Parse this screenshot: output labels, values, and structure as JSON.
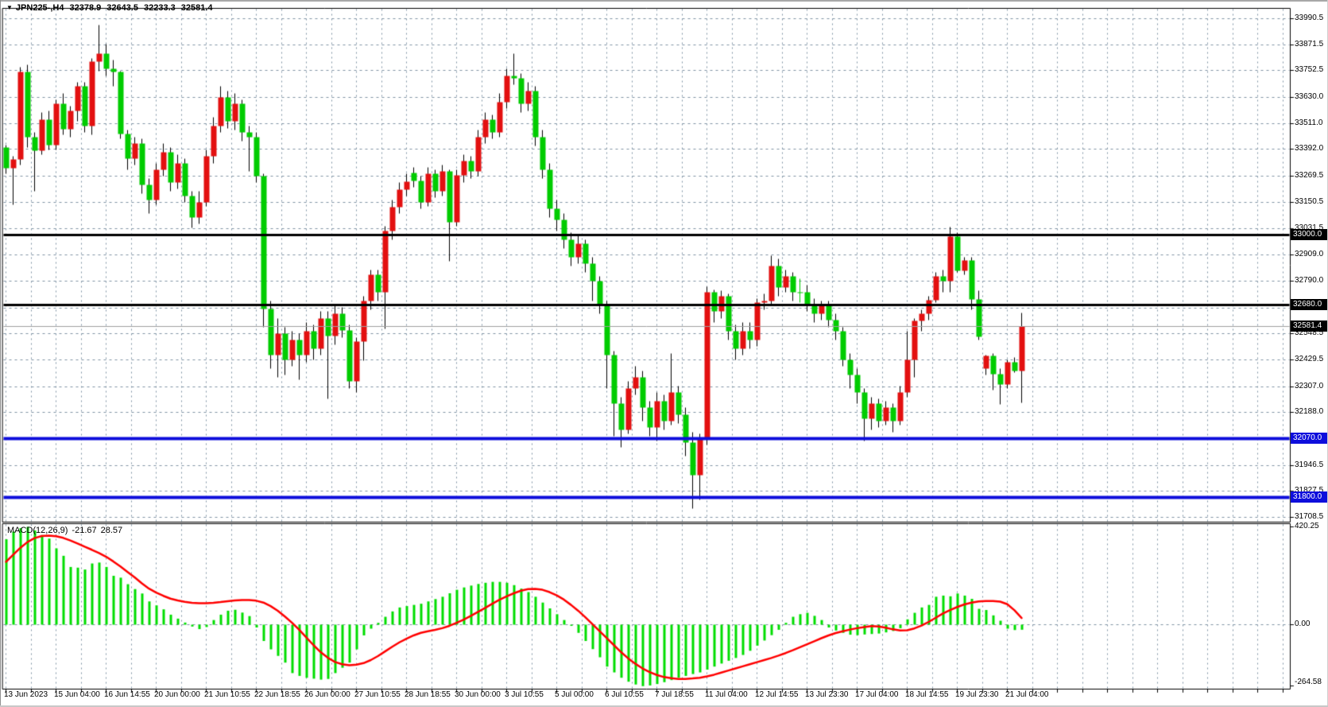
{
  "header": {
    "dropdown_icon": "▼",
    "symbol_period": "JPN225-,H4",
    "open": "32378.9",
    "high": "32643.5",
    "low": "32233.3",
    "close": "32581.4"
  },
  "macd_panel": {
    "label": "MACD(12,26,9)",
    "macd_value": "-21.67",
    "signal_value": "28.57",
    "axis_ticks": [
      {
        "label": "420.25",
        "value": 420.25
      },
      {
        "label": "0.00",
        "value": 0
      },
      {
        "label": "-264.58",
        "value": -264.58
      }
    ]
  },
  "price_axis": {
    "tick_labels": [
      {
        "label": "33990.5",
        "value": 33990.5
      },
      {
        "label": "33871.5",
        "value": 33871.5
      },
      {
        "label": "33752.5",
        "value": 33752.5
      },
      {
        "label": "33630.0",
        "value": 33630.0
      },
      {
        "label": "33511.0",
        "value": 33511.0
      },
      {
        "label": "33392.0",
        "value": 33392.0
      },
      {
        "label": "33269.5",
        "value": 33269.5
      },
      {
        "label": "33150.5",
        "value": 33150.5
      },
      {
        "label": "33031.5",
        "value": 33031.5
      },
      {
        "label": "32909.0",
        "value": 32909.0
      },
      {
        "label": "32790.0",
        "value": 32790.0
      },
      {
        "label": "32548.5",
        "value": 32548.5
      },
      {
        "label": "32429.5",
        "value": 32429.5
      },
      {
        "label": "32307.0",
        "value": 32307.0
      },
      {
        "label": "32188.0",
        "value": 32188.0
      },
      {
        "label": "31946.5",
        "value": 31946.5
      },
      {
        "label": "31827.5",
        "value": 31827.5
      },
      {
        "label": "31708.5",
        "value": 31708.5
      }
    ],
    "gridline_only_values": [
      32667.5,
      32065.5
    ],
    "badges": [
      {
        "label": "33000.0",
        "value": 33000.0,
        "bg": "#000000"
      },
      {
        "label": "32680.0",
        "value": 32680.0,
        "bg": "#000000"
      },
      {
        "label": "32581.4",
        "value": 32581.4,
        "bg": "#000000",
        "current": true
      },
      {
        "label": "32070.0",
        "value": 32070.0,
        "bg": "#0E0EDC"
      },
      {
        "label": "31800.0",
        "value": 31800.0,
        "bg": "#0E0EDC"
      }
    ]
  },
  "time_axis": {
    "labels": [
      {
        "text": "13 Jun 2023",
        "bar_index": 0
      },
      {
        "text": "15 Jun 04:00",
        "bar_index": 7
      },
      {
        "text": "16 Jun 14:55",
        "bar_index": 14
      },
      {
        "text": "20 Jun 00:00",
        "bar_index": 21
      },
      {
        "text": "21 Jun 10:55",
        "bar_index": 28
      },
      {
        "text": "22 Jun 18:55",
        "bar_index": 35
      },
      {
        "text": "26 Jun 00:00",
        "bar_index": 42
      },
      {
        "text": "27 Jun 10:55",
        "bar_index": 49
      },
      {
        "text": "28 Jun 18:55",
        "bar_index": 56
      },
      {
        "text": "30 Jun 00:00",
        "bar_index": 63
      },
      {
        "text": "3 Jul 10:55",
        "bar_index": 70
      },
      {
        "text": "5 Jul 00:00",
        "bar_index": 77
      },
      {
        "text": "6 Jul 10:55",
        "bar_index": 84
      },
      {
        "text": "7 Jul 18:55",
        "bar_index": 91
      },
      {
        "text": "11 Jul 04:00",
        "bar_index": 98
      },
      {
        "text": "12 Jul 14:55",
        "bar_index": 105
      },
      {
        "text": "13 Jul 23:30",
        "bar_index": 112
      },
      {
        "text": "17 Jul 04:00",
        "bar_index": 119
      },
      {
        "text": "18 Jul 14:55",
        "bar_index": 126
      },
      {
        "text": "19 Jul 23:30",
        "bar_index": 133
      },
      {
        "text": "21 Jul 04:00",
        "bar_index": 140
      }
    ]
  },
  "colors": {
    "bull_candle": "#E31010",
    "bear_candle": "#00CC00",
    "wick": "#000000",
    "macd_histogram": "#00DD00",
    "macd_signal": "#FF0000",
    "grid": "#7E92A4",
    "frame": "#000000",
    "badge_black": "#000000",
    "badge_blue": "#0E0EDC",
    "current_price_line": "#A0A0A0"
  },
  "chart_data": {
    "type": "candlestick",
    "title": "JPN225-,H4",
    "note": "Asian color convention: red body = close>=open (up), green body = close<open (down). OHLC per bar below.",
    "price_axis_range": [
      31687,
      34038
    ],
    "macd_axis_range": [
      -264.58,
      420.25
    ],
    "grid": true,
    "levels": [
      {
        "value": 33000.0,
        "color": "#000000",
        "width": 3
      },
      {
        "value": 32680.0,
        "color": "#000000",
        "width": 3
      },
      {
        "value": 32070.0,
        "color": "#0E0EDC",
        "width": 4
      },
      {
        "value": 31800.0,
        "color": "#0E0EDC",
        "width": 4
      },
      {
        "value": 32581.4,
        "color": "#A0A0A0",
        "width": 1,
        "role": "current-price"
      }
    ],
    "candles": [
      [
        33400,
        33412,
        33280,
        33305
      ],
      [
        33305,
        33360,
        33140,
        33346
      ],
      [
        33346,
        33770,
        33320,
        33745
      ],
      [
        33745,
        33778,
        33400,
        33450
      ],
      [
        33450,
        33470,
        33200,
        33385
      ],
      [
        33385,
        33560,
        33370,
        33528
      ],
      [
        33528,
        33570,
        33390,
        33412
      ],
      [
        33412,
        33620,
        33390,
        33601
      ],
      [
        33601,
        33647,
        33460,
        33485
      ],
      [
        33485,
        33590,
        33450,
        33570
      ],
      [
        33570,
        33700,
        33520,
        33680
      ],
      [
        33680,
        33700,
        33470,
        33500
      ],
      [
        33500,
        33810,
        33460,
        33794
      ],
      [
        33794,
        33960,
        33750,
        33831
      ],
      [
        33831,
        33875,
        33730,
        33760
      ],
      [
        33760,
        33800,
        33680,
        33745
      ],
      [
        33745,
        33750,
        33440,
        33463
      ],
      [
        33463,
        33480,
        33300,
        33350
      ],
      [
        33350,
        33450,
        33320,
        33420
      ],
      [
        33420,
        33440,
        33190,
        33230
      ],
      [
        33230,
        33260,
        33100,
        33160
      ],
      [
        33160,
        33330,
        33140,
        33300
      ],
      [
        33300,
        33420,
        33270,
        33380
      ],
      [
        33380,
        33400,
        33200,
        33240
      ],
      [
        33240,
        33370,
        33210,
        33330
      ],
      [
        33330,
        33350,
        33150,
        33180
      ],
      [
        33180,
        33200,
        33035,
        33080
      ],
      [
        33080,
        33200,
        33050,
        33150
      ],
      [
        33150,
        33390,
        33130,
        33360
      ],
      [
        33360,
        33540,
        33330,
        33500
      ],
      [
        33500,
        33680,
        33470,
        33630
      ],
      [
        33630,
        33660,
        33490,
        33520
      ],
      [
        33520,
        33650,
        33480,
        33600
      ],
      [
        33600,
        33620,
        33430,
        33470
      ],
      [
        33470,
        33500,
        33290,
        33450
      ],
      [
        33450,
        33470,
        33240,
        33270
      ],
      [
        33270,
        33280,
        32580,
        32662
      ],
      [
        32662,
        32700,
        32390,
        32450
      ],
      [
        32450,
        32620,
        32350,
        32550
      ],
      [
        32550,
        32580,
        32360,
        32430
      ],
      [
        32430,
        32560,
        32400,
        32520
      ],
      [
        32520,
        32550,
        32340,
        32450
      ],
      [
        32450,
        32600,
        32420,
        32560
      ],
      [
        32560,
        32590,
        32430,
        32480
      ],
      [
        32480,
        32650,
        32450,
        32620
      ],
      [
        32620,
        32650,
        32250,
        32540
      ],
      [
        32540,
        32680,
        32500,
        32640
      ],
      [
        32640,
        32670,
        32530,
        32565
      ],
      [
        32565,
        32590,
        32300,
        32330
      ],
      [
        32330,
        32530,
        32280,
        32514
      ],
      [
        32514,
        32720,
        32424,
        32697
      ],
      [
        32697,
        32840,
        32660,
        32819
      ],
      [
        32819,
        32840,
        32700,
        32740
      ],
      [
        32740,
        33040,
        32572,
        33019
      ],
      [
        33019,
        33160,
        32980,
        33128
      ],
      [
        33128,
        33240,
        33100,
        33208
      ],
      [
        33208,
        33280,
        33180,
        33245
      ],
      [
        33285,
        33310,
        33220,
        33248
      ],
      [
        33248,
        33270,
        33120,
        33150
      ],
      [
        33150,
        33310,
        33130,
        33280
      ],
      [
        33280,
        33300,
        33170,
        33200
      ],
      [
        33200,
        33320,
        33180,
        33290
      ],
      [
        33290,
        33300,
        32880,
        33060
      ],
      [
        33060,
        33300,
        33040,
        33275
      ],
      [
        33275,
        33370,
        33240,
        33340
      ],
      [
        33340,
        33360,
        33260,
        33290
      ],
      [
        33290,
        33480,
        33270,
        33450
      ],
      [
        33450,
        33560,
        33420,
        33530
      ],
      [
        33530,
        33550,
        33440,
        33470
      ],
      [
        33470,
        33650,
        33450,
        33610
      ],
      [
        33610,
        33760,
        33580,
        33729
      ],
      [
        33729,
        33830,
        33690,
        33717
      ],
      [
        33717,
        33740,
        33560,
        33600
      ],
      [
        33600,
        33700,
        33570,
        33660
      ],
      [
        33660,
        33680,
        33410,
        33450
      ],
      [
        33450,
        33480,
        33260,
        33300
      ],
      [
        33300,
        33330,
        33080,
        33120
      ],
      [
        33120,
        33160,
        33020,
        33070
      ],
      [
        33070,
        33100,
        32940,
        32980
      ],
      [
        32980,
        33010,
        32860,
        32900
      ],
      [
        32900,
        33000,
        32870,
        32960
      ],
      [
        32960,
        32980,
        32830,
        32870
      ],
      [
        32870,
        32900,
        32700,
        32790
      ],
      [
        32790,
        32810,
        32640,
        32680
      ],
      [
        32680,
        32700,
        32300,
        32450
      ],
      [
        32450,
        32470,
        32080,
        32230
      ],
      [
        32230,
        32260,
        32030,
        32110
      ],
      [
        32110,
        32330,
        32090,
        32300
      ],
      [
        32300,
        32400,
        32270,
        32350
      ],
      [
        32350,
        32380,
        32150,
        32210
      ],
      [
        32210,
        32240,
        32080,
        32120
      ],
      [
        32120,
        32280,
        32060,
        32240
      ],
      [
        32240,
        32270,
        32110,
        32150
      ],
      [
        32150,
        32460,
        32130,
        32280
      ],
      [
        32280,
        32310,
        32140,
        32180
      ],
      [
        32180,
        32210,
        31990,
        32050
      ],
      [
        32050,
        32100,
        31750,
        31900
      ],
      [
        31900,
        32090,
        31790,
        32072
      ],
      [
        32072,
        32765,
        32040,
        32738
      ],
      [
        32738,
        32750,
        32600,
        32650
      ],
      [
        32650,
        32745,
        32620,
        32720
      ],
      [
        32720,
        32730,
        32520,
        32560
      ],
      [
        32560,
        32590,
        32430,
        32480
      ],
      [
        32480,
        32600,
        32450,
        32560
      ],
      [
        32560,
        32600,
        32480,
        32520
      ],
      [
        32520,
        32710,
        32490,
        32690
      ],
      [
        32690,
        32730,
        32660,
        32700
      ],
      [
        32700,
        32905,
        32680,
        32860
      ],
      [
        32860,
        32890,
        32720,
        32760
      ],
      [
        32760,
        32840,
        32740,
        32810
      ],
      [
        32810,
        32830,
        32700,
        32740
      ],
      [
        32740,
        32800,
        32690,
        32740
      ],
      [
        32740,
        32770,
        32650,
        32680
      ],
      [
        32680,
        32710,
        32600,
        32640
      ],
      [
        32640,
        32700,
        32610,
        32680
      ],
      [
        32680,
        32700,
        32580,
        32610
      ],
      [
        32610,
        32640,
        32520,
        32560
      ],
      [
        32560,
        32580,
        32400,
        32430
      ],
      [
        32430,
        32460,
        32300,
        32360
      ],
      [
        32360,
        32390,
        32230,
        32280
      ],
      [
        32280,
        32300,
        32060,
        32160
      ],
      [
        32160,
        32260,
        32110,
        32230
      ],
      [
        32230,
        32250,
        32120,
        32150
      ],
      [
        32150,
        32240,
        32130,
        32210
      ],
      [
        32210,
        32230,
        32100,
        32150
      ],
      [
        32150,
        32310,
        32130,
        32280
      ],
      [
        32280,
        32560,
        32260,
        32430
      ],
      [
        32430,
        32620,
        32350,
        32608
      ],
      [
        32608,
        32660,
        32560,
        32640
      ],
      [
        32640,
        32720,
        32610,
        32702
      ],
      [
        32702,
        32830,
        32691,
        32811
      ],
      [
        32811,
        32840,
        32740,
        32790
      ],
      [
        32790,
        33036,
        32740,
        32993
      ],
      [
        32993,
        33010,
        32830,
        32837
      ],
      [
        32837,
        32900,
        32820,
        32884
      ],
      [
        32884,
        32900,
        32660,
        32707
      ],
      [
        32707,
        32745,
        32520,
        32534
      ],
      [
        32390,
        32450,
        32360,
        32447
      ],
      [
        32447,
        32460,
        32290,
        32364
      ],
      [
        32364,
        32390,
        32225,
        32316
      ],
      [
        32316,
        32430,
        32300,
        32418
      ],
      [
        32418,
        32440,
        32370,
        32380
      ],
      [
        32378.9,
        32643.5,
        32233.3,
        32581.4
      ]
    ],
    "macd": {
      "params": "12,26,9",
      "current_macd": -21.67,
      "current_signal": 28.57,
      "histogram": [
        367,
        400,
        415,
        420,
        405,
        385,
        370,
        328,
        296,
        248,
        245,
        237,
        263,
        267,
        248,
        210,
        202,
        174,
        153,
        134,
        100,
        83,
        66,
        43,
        26,
        9,
        -8,
        -19,
        -10,
        20,
        43,
        60,
        64,
        52,
        37,
        -12,
        -70,
        -106,
        -134,
        -163,
        -208,
        -220,
        -228,
        -232,
        -236,
        -233,
        -208,
        -185,
        -163,
        -106,
        -46,
        -17,
        8,
        34,
        57,
        74,
        80,
        85,
        90,
        100,
        110,
        120,
        135,
        150,
        160,
        168,
        175,
        180,
        184,
        184,
        180,
        170,
        155,
        140,
        120,
        95,
        70,
        45,
        20,
        -5,
        -35,
        -70,
        -105,
        -140,
        -180,
        -205,
        -228,
        -245,
        -257,
        -264,
        -261,
        -255,
        -247,
        -238,
        -228,
        -220,
        -212,
        -205,
        -193,
        -180,
        -167,
        -155,
        -143,
        -130,
        -112,
        -90,
        -68,
        -45,
        -22,
        8,
        34,
        45,
        51,
        38,
        20,
        -12,
        -25,
        -35,
        -43,
        -45,
        -42,
        -40,
        -38,
        -33,
        -27,
        -15,
        23,
        51,
        74,
        85,
        120,
        125,
        122,
        134,
        125,
        111,
        68,
        63,
        40,
        17,
        -17,
        -23,
        -21.67
      ],
      "signal": [
        270,
        300,
        330,
        355,
        372,
        381,
        383,
        380,
        373,
        362,
        349,
        335,
        322,
        308,
        292,
        272,
        250,
        226,
        203,
        178,
        155,
        138,
        124,
        112,
        104,
        98,
        94,
        92,
        92,
        94,
        97,
        101,
        104,
        106,
        106,
        103,
        95,
        80,
        60,
        35,
        8,
        -22,
        -55,
        -88,
        -118,
        -142,
        -160,
        -170,
        -174,
        -172,
        -165,
        -152,
        -135,
        -115,
        -95,
        -76,
        -60,
        -46,
        -35,
        -28,
        -22,
        -15,
        -5,
        8,
        22,
        38,
        55,
        72,
        90,
        107,
        122,
        135,
        146,
        153,
        154,
        150,
        140,
        126,
        108,
        85,
        60,
        32,
        2,
        -28,
        -58,
        -88,
        -118,
        -145,
        -168,
        -188,
        -204,
        -216,
        -225,
        -230,
        -233,
        -233,
        -231,
        -228,
        -222,
        -215,
        -206,
        -197,
        -188,
        -179,
        -170,
        -161,
        -152,
        -143,
        -133,
        -122,
        -110,
        -97,
        -84,
        -71,
        -58,
        -46,
        -36,
        -28,
        -21,
        -15,
        -10,
        -6,
        -8,
        -13,
        -20,
        -25,
        -24,
        -16,
        -4,
        12,
        30,
        48,
        63,
        76,
        87,
        95,
        100,
        102,
        102,
        99,
        88,
        62,
        28.57
      ]
    }
  }
}
